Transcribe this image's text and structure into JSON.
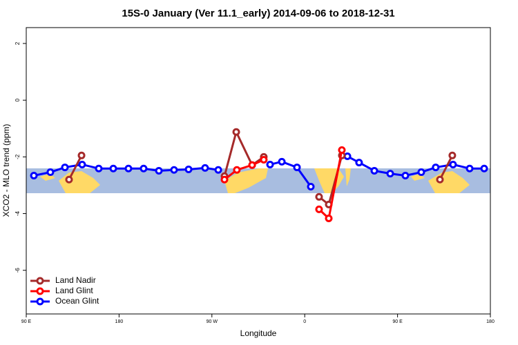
{
  "chart_data": {
    "type": "line",
    "title": "15S-0 January (Ver 11.1_early)   2014-09-06 to 2018-12-31",
    "x_label": "Longitude",
    "y_label": "XCO2 - MLO trend (ppm)",
    "xlim": [
      90,
      540
    ],
    "ylim": [
      2.56,
      -7.54
    ],
    "xticks": [
      {
        "value": 90,
        "label": "90 E"
      },
      {
        "value": 180,
        "label": "180"
      },
      {
        "value": 270,
        "label": "90 W"
      },
      {
        "value": 360,
        "label": "0"
      },
      {
        "value": 450,
        "label": "90 E"
      },
      {
        "value": 540,
        "label": "180"
      }
    ],
    "yticks": [
      2,
      0,
      -2,
      -4,
      -6
    ],
    "legend": "bottom-left",
    "series": [
      {
        "name": "Land Nadir",
        "color": "#a52a2a",
        "x": [
          131.5,
          143.6,
          null,
          282.2,
          293.6,
          309,
          320.3,
          null,
          373.9,
          383.3,
          396,
          null,
          491.1,
          503.1
        ],
        "values": [
          -2.8,
          -1.95,
          null,
          -2.68,
          -1.12,
          -2.29,
          -2.0,
          null,
          -3.41,
          -3.68,
          -1.95,
          null,
          -2.8,
          -1.95
        ]
      },
      {
        "name": "Land Glint",
        "color": "#ff0000",
        "x": [
          282.2,
          294.2,
          309,
          320.3,
          null,
          373.9,
          383.3,
          396
        ],
        "values": [
          -2.8,
          -2.46,
          -2.29,
          -2.1,
          null,
          -3.85,
          -4.17,
          -1.76
        ]
      },
      {
        "name": "Ocean Glint",
        "color": "#0000ff",
        "x": [
          97.4,
          113.4,
          127.5,
          144.2,
          160.3,
          174.4,
          189.1,
          203.8,
          218.6,
          233.3,
          247.4,
          263.4,
          276.2,
          null,
          326.4,
          337.8,
          352.5,
          365.9,
          null,
          401.4,
          412.7,
          427.5,
          442.9,
          457.6,
          473,
          487,
          503.8,
          519.9,
          534
        ],
        "values": [
          -2.66,
          -2.54,
          -2.37,
          -2.27,
          -2.41,
          -2.41,
          -2.41,
          -2.41,
          -2.49,
          -2.46,
          -2.44,
          -2.39,
          -2.46,
          null,
          -2.27,
          -2.17,
          -2.37,
          -3.05,
          null,
          -1.98,
          -2.2,
          -2.49,
          -2.59,
          -2.66,
          -2.54,
          -2.37,
          -2.27,
          -2.41,
          -2.41
        ]
      }
    ]
  }
}
